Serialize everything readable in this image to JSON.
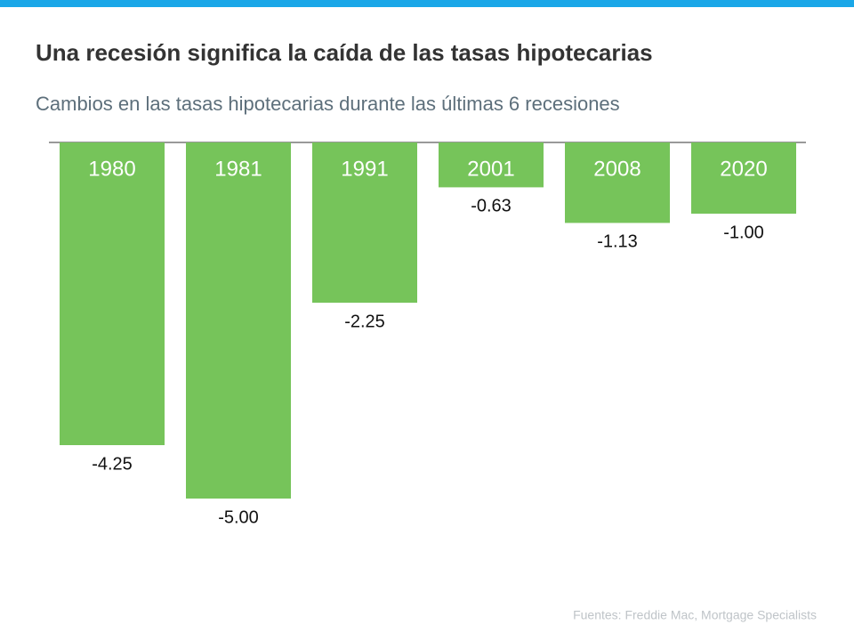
{
  "chart_data": {
    "type": "bar",
    "title": "Una recesión significa la caída de las tasas hipotecarias",
    "subtitle": "Cambios en las tasas hipotecarias durante las últimas 6 recesiones",
    "categories": [
      "1980",
      "1981",
      "1991",
      "2001",
      "2008",
      "2020"
    ],
    "values": [
      -4.25,
      -5.0,
      -2.25,
      -0.63,
      -1.13,
      -1.0
    ],
    "value_labels": [
      "-4.25",
      "-5.00",
      "-2.25",
      "-0.63",
      "-1.13",
      "-1.00"
    ],
    "color": "#76c45a",
    "source": "Fuentes:  Freddie Mac, Mortgage Specialists"
  }
}
